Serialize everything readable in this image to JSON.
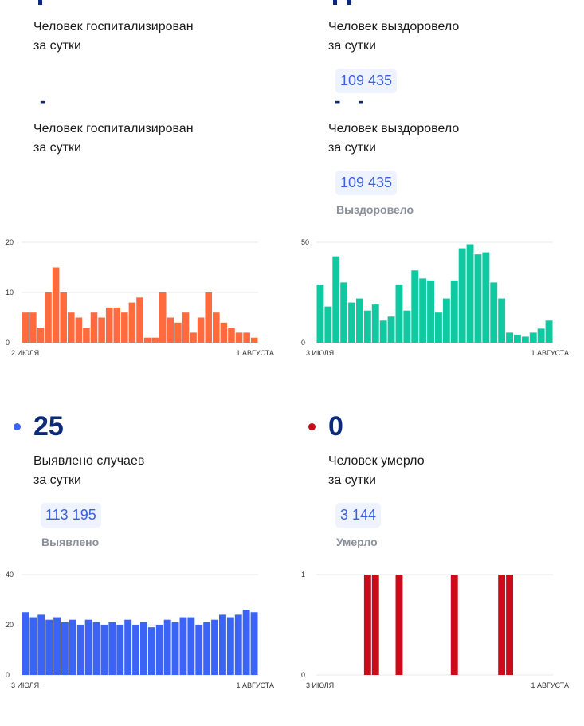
{
  "row0": {
    "left_label": "Человек госпитализирован\nза сутки",
    "right_label": "Человек выздоровело\nза сутки",
    "right_total": "109 435"
  },
  "row1": {
    "left_dash": "-",
    "right_dash": "- -",
    "left_label": "Человек госпитализирован\nза сутки",
    "right_label": "Человек выздоровело\nза сутки",
    "right_total": "109 435",
    "right_sub": "Выздоровело"
  },
  "row2": {
    "left_value": "25",
    "left_label": "Выявлено случаев\nза сутки",
    "left_total": "113 195",
    "left_sub": "Выявлено",
    "left_dot_color": "#3b64f4",
    "right_value": "0",
    "right_label": "Человек умерло\nза сутки",
    "right_total": "3 144",
    "right_sub": "Умерло",
    "right_dot_color": "#cc0b1a"
  },
  "chart_data": [
    {
      "id": "hospitalized",
      "type": "bar",
      "color": "#ff6b3d",
      "ylim": [
        0,
        20
      ],
      "yticks": [
        "20",
        "10",
        "0"
      ],
      "xstart": "2 ИЮЛЯ",
      "xend": "1 АВГУСТА",
      "values": [
        6,
        6,
        3,
        10,
        15,
        10,
        6,
        5,
        3,
        6,
        5,
        7,
        7,
        6,
        8,
        9,
        1,
        1,
        10,
        5,
        4,
        6,
        2,
        5,
        10,
        6,
        4,
        3,
        2,
        2,
        1
      ]
    },
    {
      "id": "recovered",
      "type": "bar",
      "color": "#10c9a0",
      "ylim": [
        0,
        50
      ],
      "yticks": [
        "50",
        "0"
      ],
      "xstart": "3 ИЮЛЯ",
      "xend": "1 АВГУСТА",
      "values": [
        29,
        18,
        43,
        30,
        20,
        22,
        16,
        19,
        11,
        13,
        29,
        16,
        36,
        32,
        31,
        15,
        22,
        31,
        47,
        49,
        44,
        45,
        30,
        22,
        5,
        4,
        3,
        5,
        7,
        11
      ]
    },
    {
      "id": "cases",
      "type": "bar",
      "color": "#3b64f4",
      "ylim": [
        0,
        40
      ],
      "yticks": [
        "40",
        "20",
        "0"
      ],
      "xstart": "3 ИЮЛЯ",
      "xend": "1 АВГУСТА",
      "values": [
        25,
        23,
        24,
        22,
        23,
        21,
        22,
        20,
        22,
        21,
        20,
        21,
        20,
        22,
        20,
        21,
        19,
        20,
        22,
        21,
        23,
        23,
        20,
        21,
        22,
        24,
        23,
        24,
        26,
        25
      ]
    },
    {
      "id": "deaths",
      "type": "bar",
      "color": "#cc0b1a",
      "ylim": [
        0,
        1
      ],
      "yticks": [
        "1",
        "0"
      ],
      "xstart": "3 ИЮЛЯ",
      "xend": "1 АВГУСТА",
      "values": [
        0,
        0,
        0,
        0,
        0,
        0,
        1,
        1,
        0,
        0,
        1,
        0,
        0,
        0,
        0,
        0,
        0,
        1,
        0,
        0,
        0,
        0,
        0,
        1,
        1,
        0,
        0,
        0,
        0,
        0
      ]
    }
  ]
}
